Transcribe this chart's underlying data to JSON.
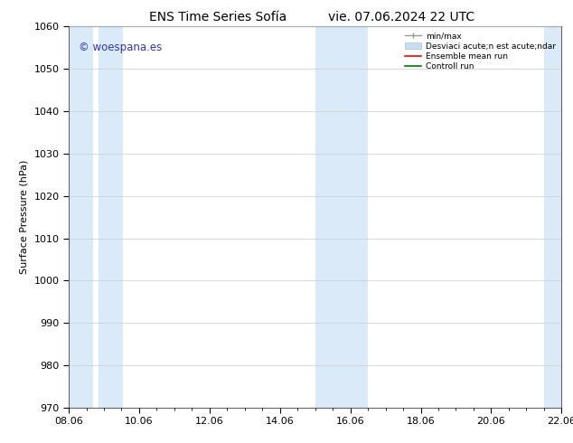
{
  "title_left": "ENS Time Series Sofía",
  "title_right": "vie. 07.06.2024 22 UTC",
  "ylabel": "Surface Pressure (hPa)",
  "ylim": [
    970,
    1060
  ],
  "yticks": [
    970,
    980,
    990,
    1000,
    1010,
    1020,
    1030,
    1040,
    1050,
    1060
  ],
  "xlim_start": 0,
  "xlim_end": 14,
  "xtick_labels": [
    "08.06",
    "10.06",
    "12.06",
    "14.06",
    "16.06",
    "18.06",
    "20.06",
    "22.06"
  ],
  "xtick_positions": [
    0,
    2,
    4,
    6,
    8,
    10,
    12,
    14
  ],
  "bg_color": "#ffffff",
  "plot_bg_color": "#ffffff",
  "band_color": "#daeaf8",
  "bands": [
    {
      "x_start": 0.0,
      "x_end": 0.5
    },
    {
      "x_start": 1.0,
      "x_end": 1.5
    },
    {
      "x_start": 7.5,
      "x_end": 8.5
    },
    {
      "x_start": 13.5,
      "x_end": 14.0
    }
  ],
  "watermark_text": "© woespana.es",
  "watermark_color": "#3333bb",
  "legend_label_minmax": "min/max",
  "legend_label_std": "Desviaci acute;n est acute;ndar",
  "legend_label_ensemble": "Ensemble mean run",
  "legend_label_control": "Controll run",
  "legend_color_minmax": "#999999",
  "legend_color_std": "#c8ddf0",
  "legend_color_ensemble": "#ff0000",
  "legend_color_control": "#007700",
  "font_size": 8,
  "title_font_size": 10,
  "ylabel_fontsize": 8
}
